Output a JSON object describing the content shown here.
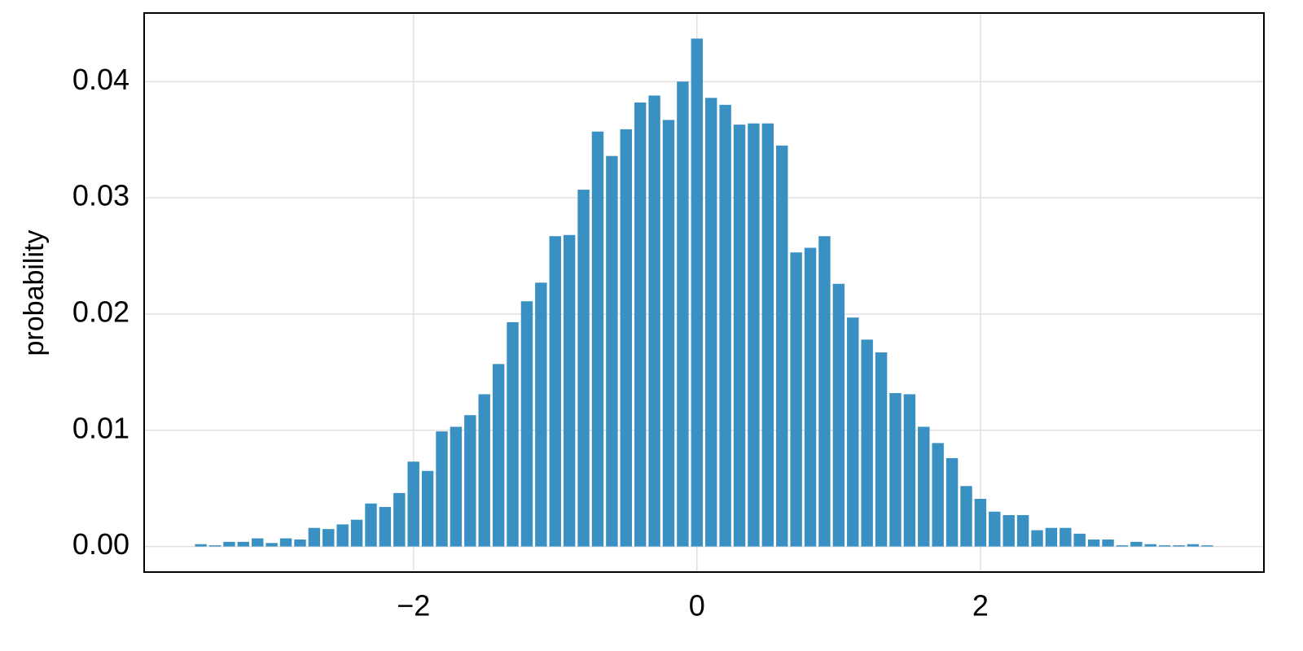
{
  "chart_data": {
    "type": "histogram",
    "y_label": "probability",
    "color": "#3990c2",
    "grid": true,
    "bins": [
      -3.55,
      -3.45,
      -3.35,
      -3.25,
      -3.15,
      -3.05,
      -2.95,
      -2.85,
      -2.75,
      -2.65,
      -2.55,
      -2.45,
      -2.35,
      -2.25,
      -2.15,
      -2.05,
      -1.95,
      -1.85,
      -1.75,
      -1.65,
      -1.55,
      -1.45,
      -1.35,
      -1.25,
      -1.15,
      -1.05,
      -0.95,
      -0.85,
      -0.75,
      -0.65,
      -0.55,
      -0.45,
      -0.35,
      -0.25,
      -0.15,
      -0.05,
      0.05,
      0.15,
      0.25,
      0.35,
      0.45,
      0.55,
      0.65,
      0.75,
      0.85,
      0.95,
      1.05,
      1.15,
      1.25,
      1.35,
      1.45,
      1.55,
      1.65,
      1.75,
      1.85,
      1.95,
      2.05,
      2.15,
      2.25,
      2.35,
      2.45,
      2.55,
      2.65,
      2.75,
      2.85,
      2.95,
      3.05,
      3.15,
      3.25,
      3.35,
      3.45,
      3.55,
      3.65
    ],
    "values": [
      0.0002,
      0.0001,
      0.0004,
      0.0004,
      0.0007,
      0.0003,
      0.0007,
      0.0006,
      0.0016,
      0.0015,
      0.0019,
      0.0023,
      0.0037,
      0.0034,
      0.0046,
      0.0073,
      0.0065,
      0.0099,
      0.0103,
      0.0113,
      0.0131,
      0.0157,
      0.0193,
      0.0211,
      0.0227,
      0.0267,
      0.0268,
      0.0307,
      0.0357,
      0.0336,
      0.0359,
      0.0382,
      0.0388,
      0.0367,
      0.04,
      0.0437,
      0.0386,
      0.038,
      0.0363,
      0.0364,
      0.0364,
      0.0345,
      0.0253,
      0.0257,
      0.0267,
      0.0226,
      0.0197,
      0.0178,
      0.0167,
      0.0132,
      0.0131,
      0.0103,
      0.0089,
      0.0076,
      0.0052,
      0.0041,
      0.003,
      0.0027,
      0.0027,
      0.0014,
      0.0016,
      0.0016,
      0.0011,
      0.0006,
      0.0006,
      0.0001,
      0.0004,
      0.0002,
      0.0001,
      0.0001,
      0.0002,
      0.0001
    ],
    "xlim": [
      -3.9,
      4.0
    ],
    "ylim": [
      -0.0022,
      0.0459
    ],
    "xticks": [
      {
        "value": -2,
        "label": "−2"
      },
      0,
      2
    ],
    "yticks": [
      {
        "value": 0,
        "label": "0.00"
      },
      0.01,
      0.02,
      0.03,
      0.04
    ]
  }
}
